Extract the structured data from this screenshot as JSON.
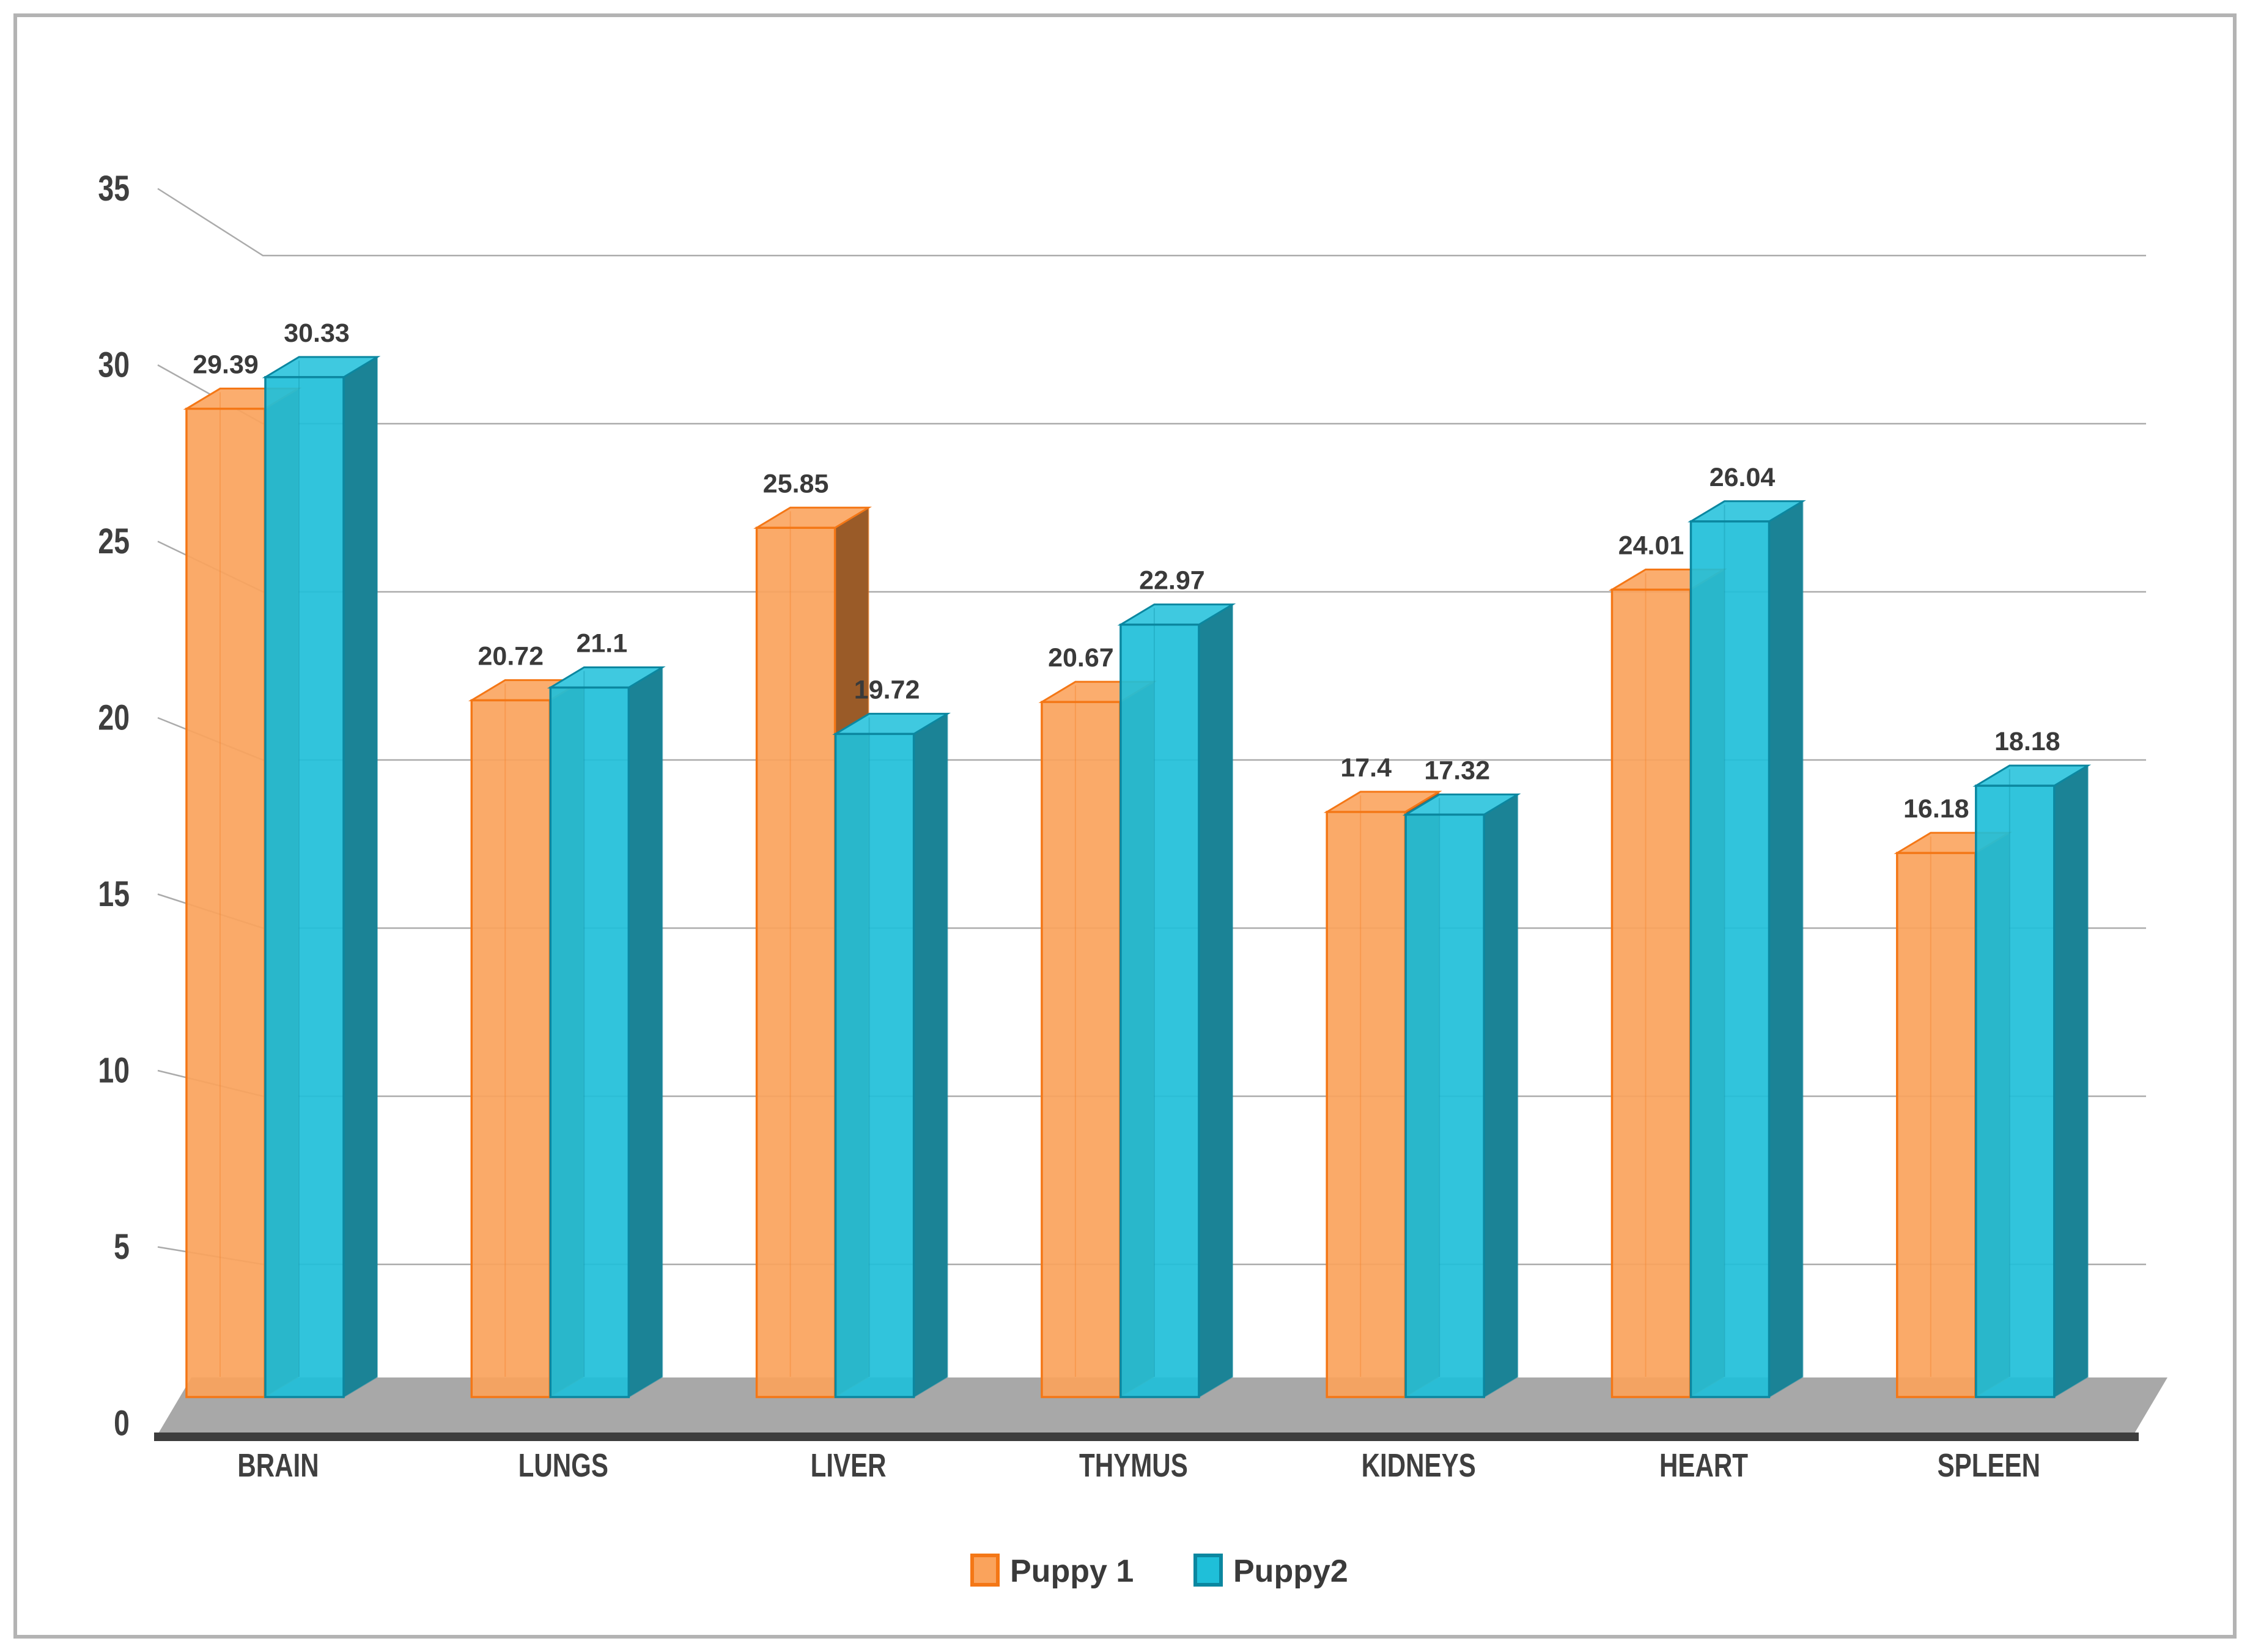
{
  "frame": {
    "background": "#FFFFFF",
    "border_color": "#B3B3B3"
  },
  "chart_data": {
    "type": "bar",
    "style": "3d-clustered-column",
    "title": "",
    "xlabel": "",
    "ylabel": "",
    "categories": [
      "BRAIN",
      "LUNGS",
      "LIVER",
      "THYMUS",
      "KIDNEYS",
      "HEART",
      "SPLEEN"
    ],
    "series": [
      {
        "name": "Puppy 1",
        "values": [
          29.39,
          20.72,
          25.85,
          20.67,
          17.4,
          24.01,
          16.18
        ],
        "color_front": "#FAA35C",
        "color_top": "#FBAD6E",
        "color_side": "#9A5B28",
        "color_border": "#F47716"
      },
      {
        "name": "Puppy2",
        "values": [
          30.33,
          21.1,
          19.72,
          22.97,
          17.32,
          26.04,
          18.18
        ],
        "color_front": "#1FBFD9",
        "color_top": "#3FC9E0",
        "color_side": "#1B8396",
        "color_border": "#0B87A0"
      }
    ],
    "data_labels": [
      [
        "29.39",
        "20.72",
        "25.85",
        "20.67",
        "17.4",
        "24.01",
        "16.18"
      ],
      [
        "30.33",
        "21.1",
        "19.72",
        "22.97",
        "17.32",
        "26.04",
        "18.18"
      ]
    ],
    "y_ticks": [
      "0",
      "5",
      "10",
      "15",
      "20",
      "25",
      "30",
      "35"
    ],
    "ylim": [
      0,
      35
    ],
    "grid": true,
    "legend_position": "bottom",
    "axis_text_color": "#3F3F3F",
    "data_label_color": "#3A3A3A",
    "gridline_color": "#ABABAB",
    "floor_color": "#A8A8A8",
    "floor_edge_color": "#3D3D3D"
  }
}
